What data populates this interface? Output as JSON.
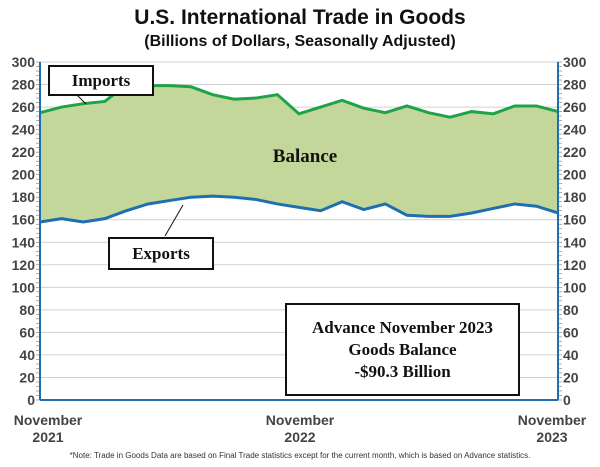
{
  "chart_data": {
    "type": "area",
    "title": "U.S. International Trade in Goods",
    "subtitle": "(Billions of Dollars, Seasonally Adjusted)",
    "ylim": [
      0,
      300
    ],
    "yticks": [
      0,
      20,
      40,
      60,
      80,
      100,
      120,
      140,
      160,
      180,
      200,
      220,
      240,
      260,
      280,
      300
    ],
    "x_tick_labels": [
      {
        "line1": "November",
        "line2": "2021"
      },
      {
        "line1": "November",
        "line2": "2022"
      },
      {
        "line1": "November",
        "line2": "2023"
      }
    ],
    "x": [
      "Nov 2021",
      "Dec 2021",
      "Jan 2022",
      "Feb 2022",
      "Mar 2022",
      "Apr 2022",
      "May 2022",
      "Jun 2022",
      "Jul 2022",
      "Aug 2022",
      "Sep 2022",
      "Oct 2022",
      "Nov 2022",
      "Dec 2022",
      "Jan 2023",
      "Feb 2023",
      "Mar 2023",
      "Apr 2023",
      "May 2023",
      "Jun 2023",
      "Jul 2023",
      "Aug 2023",
      "Sep 2023",
      "Oct 2023",
      "Nov 2023"
    ],
    "series": [
      {
        "name": "Imports",
        "color": "#1fa34a",
        "values": [
          255,
          260,
          263,
          265,
          280,
          279,
          279,
          278,
          271,
          267,
          268,
          271,
          254,
          260,
          266,
          259,
          255,
          261,
          255,
          251,
          256,
          254,
          261,
          261,
          256
        ]
      },
      {
        "name": "Exports",
        "color": "#1f6fb0",
        "values": [
          158,
          161,
          158,
          161,
          168,
          174,
          177,
          180,
          181,
          180,
          178,
          174,
          171,
          168,
          176,
          169,
          174,
          164,
          163,
          163,
          166,
          170,
          174,
          172,
          166
        ]
      }
    ],
    "fill_label": "Balance",
    "fill_color": "#c4d79b",
    "grid": true,
    "annotation": {
      "line1": "Advance November 2023",
      "line2": "Goods Balance",
      "line3": "-$90.3 Billion"
    },
    "note": "*Note: Trade in Goods Data are based on Final Trade statistics except for the current month, which is based on Advance statistics."
  }
}
